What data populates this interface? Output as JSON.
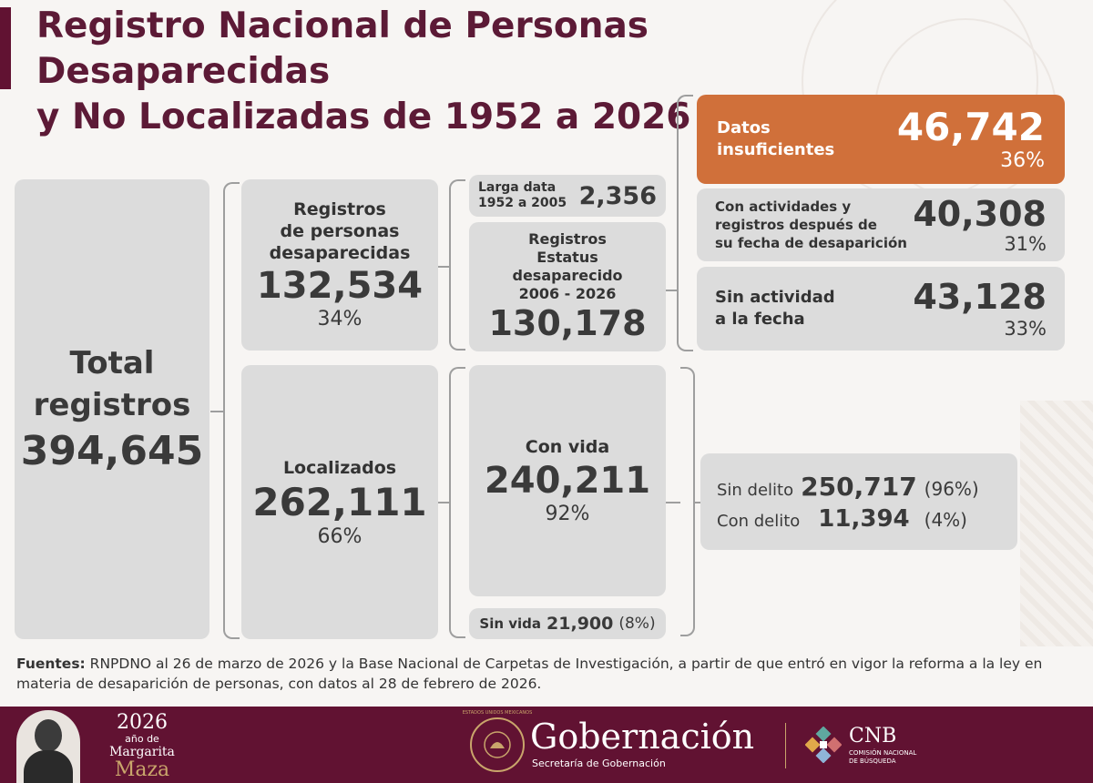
{
  "title_line1": "Registro Nacional de Personas Desaparecidas",
  "title_line2": "y No Localizadas de 1952 a 2026",
  "total": {
    "label_line1": "Total",
    "label_line2": "registros",
    "value": "394,645"
  },
  "desaparecidas": {
    "label_line1": "Registros",
    "label_line2": "de personas",
    "label_line3": "desaparecidas",
    "value": "132,534",
    "percent": "34%"
  },
  "larga_data": {
    "label_line1": "Larga data",
    "label_line2": "1952 a 2005",
    "value": "2,356"
  },
  "estatus": {
    "label_line1": "Registros",
    "label_line2": "Estatus",
    "label_line3": "desaparecido",
    "label_line4": "2006 - 2026",
    "value": "130,178"
  },
  "datos_insuficientes": {
    "label_line1": "Datos",
    "label_line2": "insuficientes",
    "value": "46,742",
    "percent": "36%"
  },
  "con_actividades": {
    "label_line1": "Con actividades y",
    "label_line2": "registros después de",
    "label_line3": "su fecha de desaparición",
    "value": "40,308",
    "percent": "31%"
  },
  "sin_actividad": {
    "label_line1": "Sin actividad",
    "label_line2": "a la fecha",
    "value": "43,128",
    "percent": "33%"
  },
  "localizados": {
    "label": "Localizados",
    "value": "262,111",
    "percent": "66%"
  },
  "con_vida": {
    "label": "Con vida",
    "value": "240,211",
    "percent": "92%"
  },
  "sin_vida": {
    "label": "Sin vida",
    "value": "21,900",
    "percent": "(8%)"
  },
  "delito": {
    "sin_label": "Sin delito",
    "sin_value": "250,717",
    "sin_percent": "(96%)",
    "con_label": "Con delito",
    "con_value": "11,394",
    "con_percent": "(4%)"
  },
  "sources": {
    "label": "Fuentes:",
    "text": " RNPDNO al 26 de marzo de 2026 y la Base Nacional de Carpetas de Investigación, a partir de que entró en vigor la reforma a la ley en materia de desaparición de personas, con datos al 28 de febrero de 2026."
  },
  "footer": {
    "year": "2026",
    "year_sub": "año de",
    "name1": "Margarita",
    "name2": "Maza",
    "seal_text": "ESTADOS UNIDOS MEXICANOS",
    "gob_title": "Gobernación",
    "gob_sub": "Secretaría de Gobernación",
    "cnb": "CNB",
    "cnb_sub1": "COMISIÓN NACIONAL",
    "cnb_sub2": "DE BÚSQUEDA"
  },
  "colors": {
    "primary": "#611232",
    "accent": "#d0703a",
    "box": "#dcdcdc",
    "gold": "#c9a56b"
  }
}
